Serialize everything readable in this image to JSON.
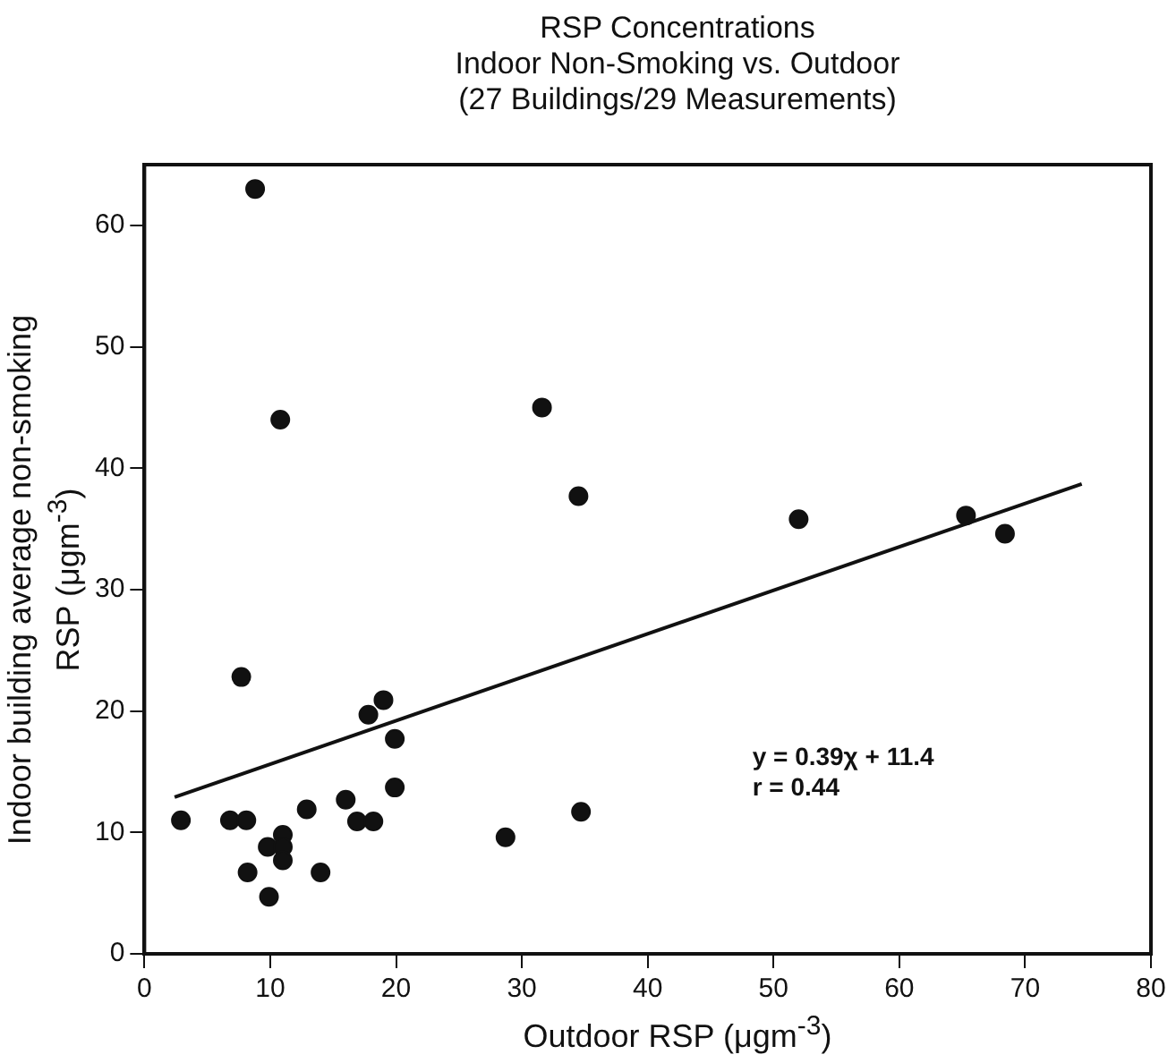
{
  "chart_data": {
    "type": "scatter",
    "title": "RSP Concentrations\nIndoor Non-Smoking vs. Outdoor\n(27 Buildings/29 Measurements)",
    "xlabel": "Outdoor RSP (μgm$^{-3}$)",
    "ylabel": "Indoor building average non-smoking\nRSP (μgm$^{-3}$)",
    "xlim": [
      0,
      80
    ],
    "ylim": [
      0,
      65
    ],
    "xticks": [
      0,
      10,
      20,
      30,
      40,
      50,
      60,
      70,
      80
    ],
    "yticks": [
      0,
      10,
      20,
      30,
      40,
      50,
      60
    ],
    "grid": false,
    "legend": false,
    "marker": "circle",
    "annotations": [
      "y = 0.39χ + 11.4",
      "r = 0.44"
    ],
    "series": [
      {
        "type": "scatter",
        "color": "#111111",
        "x": [
          8.8,
          10.8,
          31.6,
          7.7,
          17.8,
          19,
          19.9,
          19.9,
          2.9,
          6.8,
          8.1,
          8.2,
          9.9,
          9.8,
          11,
          11,
          11,
          12.9,
          14,
          16,
          16.9,
          18.2,
          28.7,
          34.5,
          34.7,
          52,
          65.3,
          68.4
        ],
        "values": [
          63,
          44,
          45,
          22.8,
          19.7,
          20.9,
          17.7,
          13.7,
          11,
          11,
          11,
          6.7,
          4.7,
          8.8,
          9.8,
          8.8,
          7.7,
          11.9,
          6.7,
          12.7,
          10.9,
          10.9,
          9.6,
          37.7,
          11.7,
          35.8,
          36.1,
          34.6
        ]
      },
      {
        "type": "line",
        "color": "#111111",
        "marker": "none",
        "x": [
          2.4,
          74.5
        ],
        "values": [
          12.9,
          38.7
        ]
      }
    ]
  }
}
